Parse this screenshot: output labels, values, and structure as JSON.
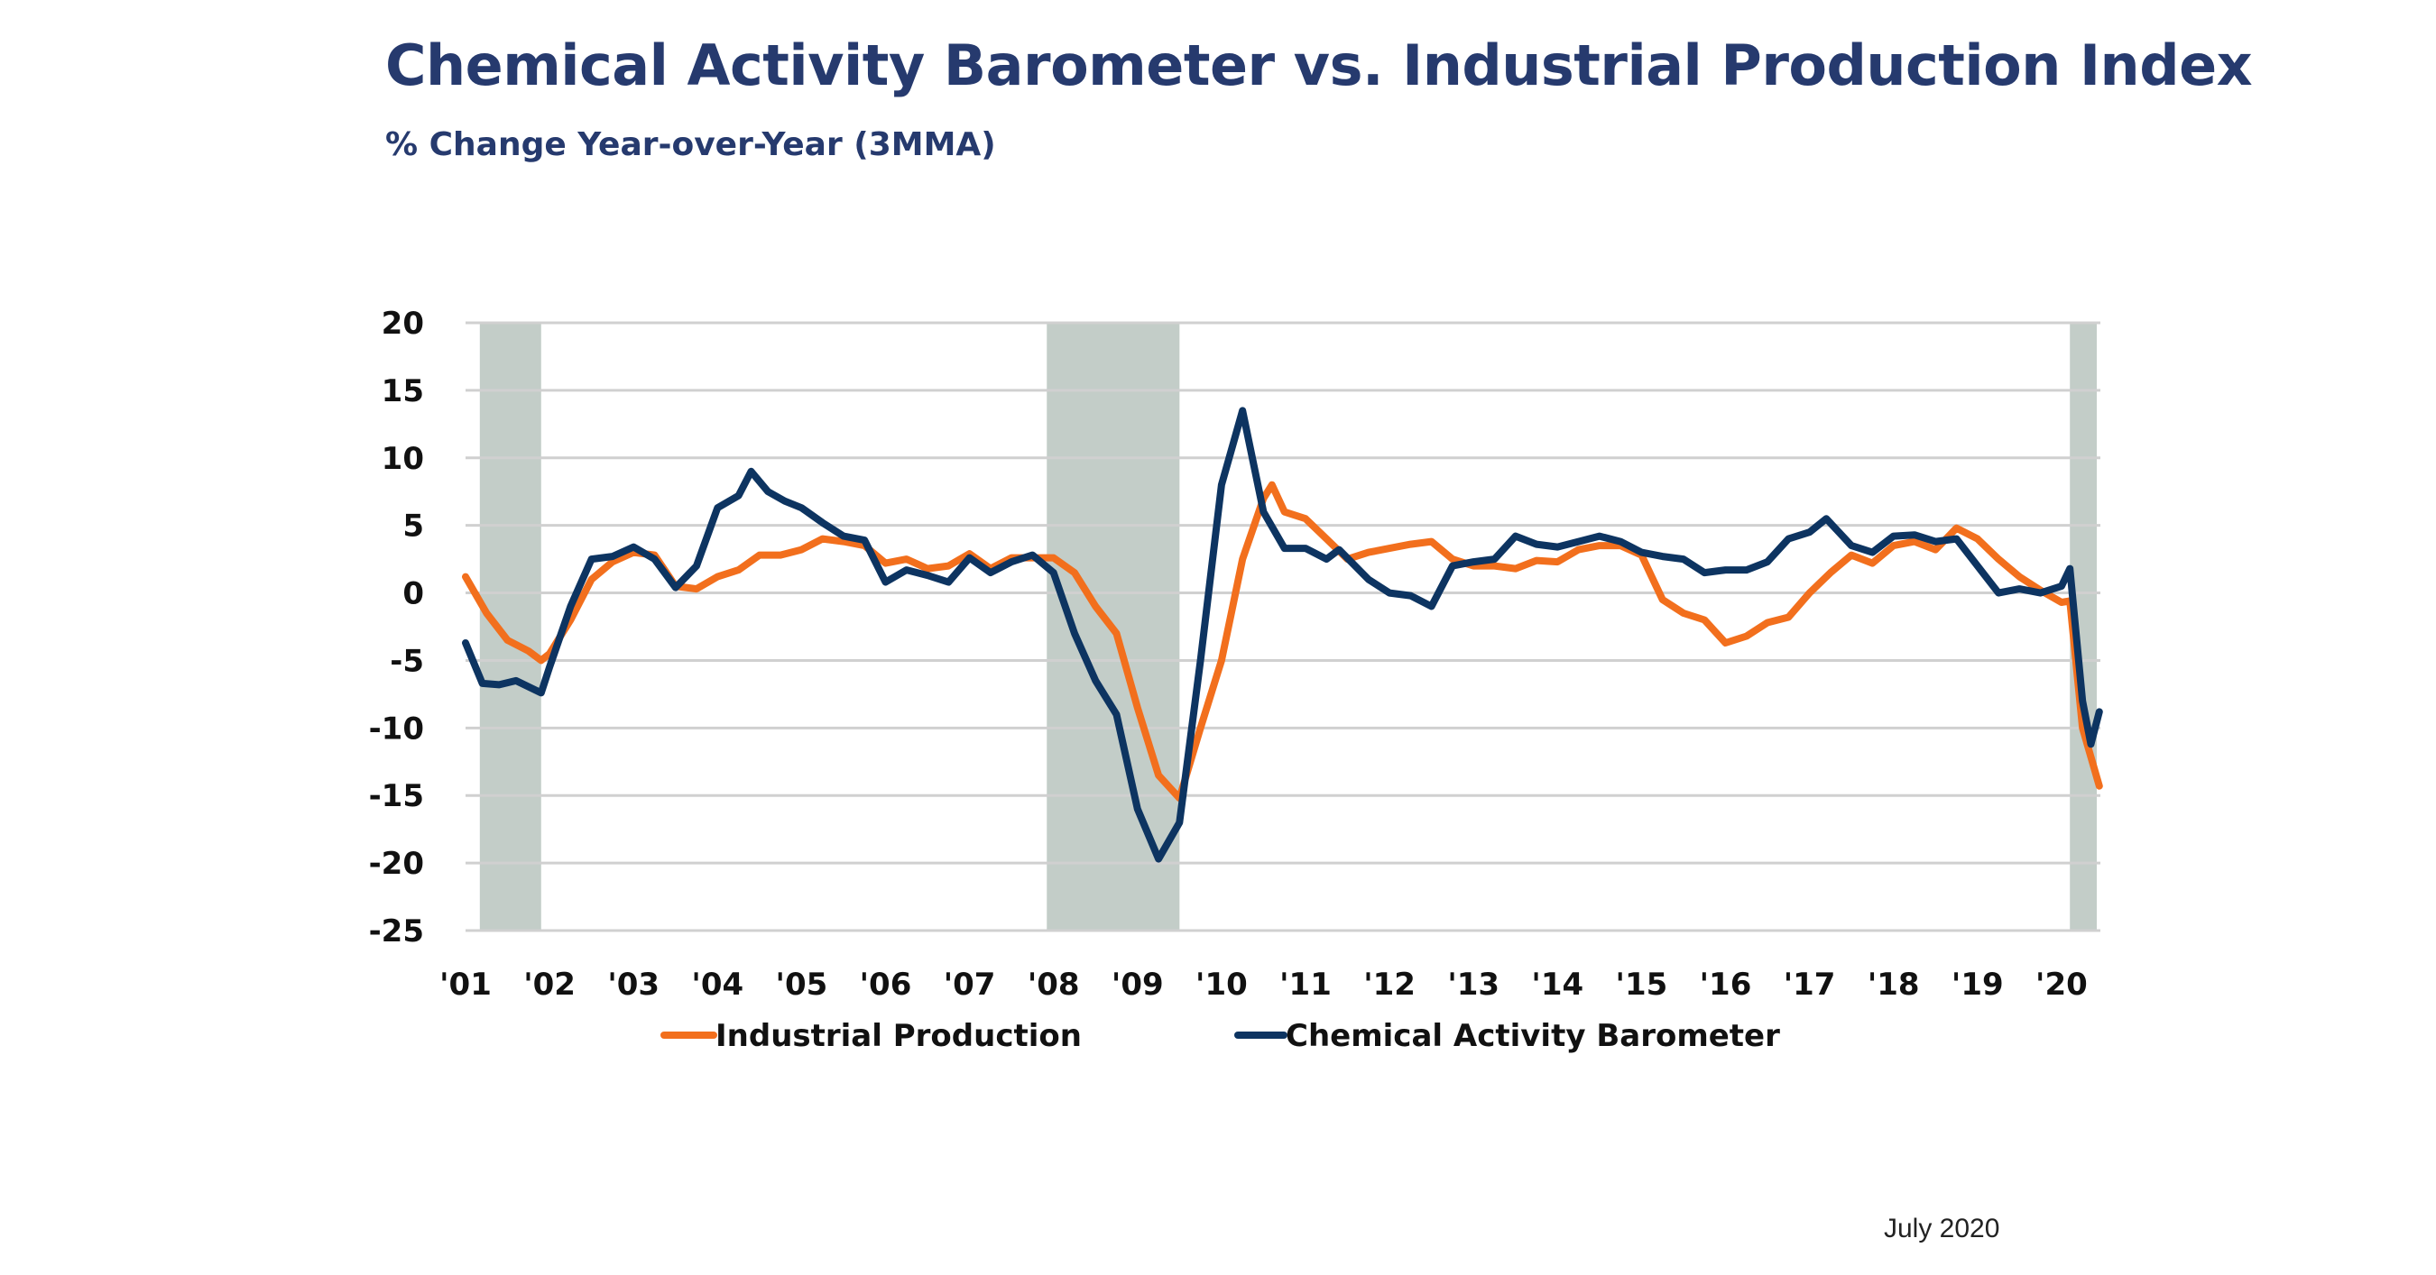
{
  "chart_data": {
    "type": "line",
    "title": "Chemical Activity Barometer vs. Industrial Production Index",
    "subtitle": "% Change Year-over-Year (3MMA)",
    "xlabel": "",
    "ylabel": "",
    "xlim": [
      2001.0,
      2020.5
    ],
    "ylim": [
      -25,
      20
    ],
    "yticks": [
      20,
      15,
      10,
      5,
      0,
      -5,
      -10,
      -15,
      -20,
      -25
    ],
    "xtick_labels": [
      "'01",
      "'02",
      "'03",
      "'04",
      "'05",
      "'06",
      "'07",
      "'08",
      "'09",
      "'10",
      "'11",
      "'12",
      "'13",
      "'14",
      "'15",
      "'16",
      "'17",
      "'18",
      "'19",
      "'20"
    ],
    "xtick_values": [
      2001,
      2002,
      2003,
      2004,
      2005,
      2006,
      2007,
      2008,
      2009,
      2010,
      2011,
      2012,
      2013,
      2014,
      2015,
      2016,
      2017,
      2018,
      2019,
      2020
    ],
    "grid": true,
    "legend_position": "bottom",
    "recession_shading": [
      [
        2001.17,
        2001.9
      ],
      [
        2007.92,
        2009.5
      ],
      [
        2020.1,
        2020.42
      ]
    ],
    "recession_color": "#c3cdc8",
    "series": [
      {
        "name": "Industrial Production",
        "color": "#f26f1d",
        "x": [
          2001.0,
          2001.25,
          2001.5,
          2001.75,
          2001.9,
          2002.0,
          2002.25,
          2002.5,
          2002.75,
          2003.0,
          2003.25,
          2003.5,
          2003.75,
          2004.0,
          2004.25,
          2004.5,
          2004.75,
          2005.0,
          2005.25,
          2005.5,
          2005.75,
          2006.0,
          2006.25,
          2006.5,
          2006.75,
          2007.0,
          2007.25,
          2007.5,
          2007.75,
          2008.0,
          2008.25,
          2008.5,
          2008.75,
          2009.0,
          2009.25,
          2009.5,
          2009.75,
          2010.0,
          2010.25,
          2010.5,
          2010.6,
          2010.75,
          2011.0,
          2011.25,
          2011.5,
          2011.75,
          2012.0,
          2012.25,
          2012.5,
          2012.75,
          2013.0,
          2013.25,
          2013.5,
          2013.75,
          2014.0,
          2014.25,
          2014.5,
          2014.75,
          2015.0,
          2015.25,
          2015.5,
          2015.75,
          2016.0,
          2016.25,
          2016.5,
          2016.75,
          2017.0,
          2017.25,
          2017.5,
          2017.75,
          2018.0,
          2018.25,
          2018.5,
          2018.75,
          2019.0,
          2019.25,
          2019.5,
          2019.75,
          2020.0,
          2020.1,
          2020.25,
          2020.45
        ],
        "values": [
          1.2,
          -1.5,
          -3.5,
          -4.3,
          -5,
          -4.5,
          -2,
          1,
          2.3,
          3,
          2.8,
          0.5,
          0.3,
          1.2,
          1.7,
          2.8,
          2.8,
          3.2,
          4,
          3.8,
          3.5,
          2.2,
          2.5,
          1.8,
          2,
          2.9,
          1.8,
          2.6,
          2.6,
          2.6,
          1.5,
          -1,
          -3,
          -8.5,
          -13.5,
          -15.2,
          -10,
          -5,
          2.5,
          7,
          8,
          6,
          5.5,
          4,
          2.5,
          3,
          3.3,
          3.6,
          3.8,
          2.5,
          2,
          2,
          1.8,
          2.4,
          2.3,
          3.2,
          3.5,
          3.5,
          2.8,
          -0.5,
          -1.5,
          -2,
          -3.7,
          -3.2,
          -2.2,
          -1.8,
          0,
          1.5,
          2.8,
          2.2,
          3.5,
          3.8,
          3.2,
          4.8,
          4,
          2.5,
          1.2,
          0.2,
          -0.7,
          -0.6,
          -10,
          -14.3
        ]
      },
      {
        "name": "Chemical Activity Barometer",
        "color": "#0d3461",
        "x": [
          2001.0,
          2001.2,
          2001.4,
          2001.6,
          2001.9,
          2002.0,
          2002.25,
          2002.5,
          2002.75,
          2003.0,
          2003.25,
          2003.5,
          2003.75,
          2004.0,
          2004.25,
          2004.4,
          2004.6,
          2004.8,
          2005.0,
          2005.25,
          2005.5,
          2005.75,
          2006.0,
          2006.25,
          2006.5,
          2006.75,
          2007.0,
          2007.25,
          2007.5,
          2007.75,
          2008.0,
          2008.25,
          2008.5,
          2008.75,
          2009.0,
          2009.25,
          2009.5,
          2009.75,
          2010.0,
          2010.25,
          2010.5,
          2010.75,
          2011.0,
          2011.25,
          2011.4,
          2011.75,
          2012.0,
          2012.25,
          2012.5,
          2012.75,
          2013.0,
          2013.25,
          2013.5,
          2013.75,
          2014.0,
          2014.25,
          2014.5,
          2014.75,
          2015.0,
          2015.25,
          2015.5,
          2015.75,
          2016.0,
          2016.25,
          2016.5,
          2016.75,
          2017.0,
          2017.2,
          2017.5,
          2017.75,
          2018.0,
          2018.25,
          2018.5,
          2018.75,
          2019.0,
          2019.25,
          2019.5,
          2019.75,
          2020.0,
          2020.1,
          2020.25,
          2020.35,
          2020.45
        ],
        "values": [
          -3.7,
          -6.7,
          -6.8,
          -6.5,
          -7.4,
          -5.5,
          -1,
          2.5,
          2.7,
          3.4,
          2.5,
          0.4,
          2,
          6.3,
          7.2,
          9,
          7.5,
          6.8,
          6.3,
          5.2,
          4.2,
          3.9,
          0.8,
          1.7,
          1.3,
          0.8,
          2.6,
          1.5,
          2.3,
          2.8,
          1.5,
          -3,
          -6.5,
          -9,
          -16,
          -19.7,
          -17,
          -5,
          8,
          13.5,
          6,
          3.3,
          3.3,
          2.5,
          3.2,
          1,
          0,
          -0.2,
          -1,
          2,
          2.3,
          2.5,
          4.2,
          3.6,
          3.4,
          3.8,
          4.2,
          3.8,
          3,
          2.7,
          2.5,
          1.5,
          1.7,
          1.7,
          2.3,
          4,
          4.5,
          5.5,
          3.5,
          3,
          4.2,
          4.3,
          3.8,
          4,
          2,
          0,
          0.3,
          0,
          0.5,
          1.8,
          -8,
          -11.2,
          -8.8
        ]
      }
    ]
  },
  "footer": {
    "date": "July 2020"
  }
}
